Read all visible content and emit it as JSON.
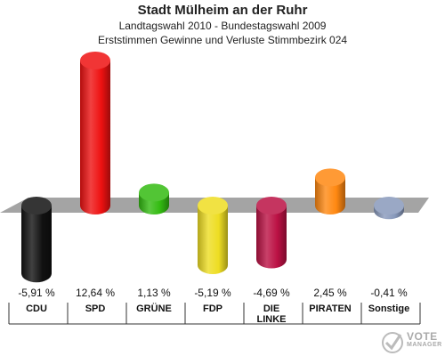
{
  "header": {
    "title": "Stadt Mülheim an der Ruhr",
    "subtitle1": "Landtagswahl 2010 - Bundestagswahl 2009",
    "subtitle2": "Erststimmen Gewinne und Verluste Stimmbezirk 024"
  },
  "watermark": {
    "line1": "VOTE",
    "line2": "MANAGER"
  },
  "chart_data": {
    "type": "bar",
    "title": "Stadt Mülheim an der Ruhr",
    "categories": [
      "CDU",
      "SPD",
      "GRÜNE",
      "FDP",
      "DIE LINKE",
      "PIRATEN",
      "Sonstige"
    ],
    "category_lines": [
      [
        "CDU"
      ],
      [
        "SPD"
      ],
      [
        "GRÜNE"
      ],
      [
        "FDP"
      ],
      [
        "DIE",
        "LINKE"
      ],
      [
        "PIRATEN"
      ],
      [
        "Sonstige"
      ]
    ],
    "values": [
      -5.91,
      12.64,
      1.13,
      -5.19,
      -4.69,
      2.45,
      -0.41
    ],
    "value_labels": [
      "-5,91 %",
      "12,64 %",
      "1,13 %",
      "-5,19 %",
      "-4,69 %",
      "2,45 %",
      "-0,41 %"
    ],
    "colors": [
      "#111111",
      "#ee1111",
      "#33bb11",
      "#eedd22",
      "#bb1144",
      "#ff8811",
      "#8899bb"
    ],
    "ylim": [
      -6,
      13
    ],
    "grid": false,
    "legend": "none"
  }
}
